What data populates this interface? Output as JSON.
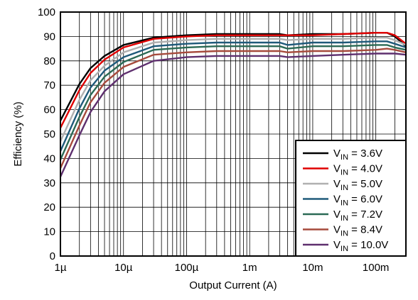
{
  "chart_data": {
    "type": "line",
    "xlabel": "Output Current (A)",
    "ylabel": "Efficiency (%)",
    "x_scale": "log",
    "xlim": [
      1e-06,
      0.3
    ],
    "ylim": [
      0,
      100
    ],
    "grid": true,
    "legend_position": "bottom-right",
    "x_ticks": [
      {
        "value": 1e-06,
        "label": "1µ"
      },
      {
        "value": 1e-05,
        "label": "10µ"
      },
      {
        "value": 0.0001,
        "label": "100µ"
      },
      {
        "value": 0.001,
        "label": "1m"
      },
      {
        "value": 0.01,
        "label": "10m"
      },
      {
        "value": 0.1,
        "label": "100m"
      }
    ],
    "y_ticks": [
      0,
      10,
      20,
      30,
      40,
      50,
      60,
      70,
      80,
      90,
      100
    ],
    "series": [
      {
        "name": "VIN = 3.6V",
        "legend_main": "V",
        "legend_sub": "IN",
        "legend_rest": " = 3.6V",
        "color": "#000000",
        "x": [
          1e-06,
          2e-06,
          3e-06,
          5e-06,
          1e-05,
          3e-05,
          0.0001,
          0.0003,
          0.001,
          0.003,
          0.004,
          0.01,
          0.03,
          0.1,
          0.15,
          0.2,
          0.3
        ],
        "y": [
          55.5,
          70.5,
          77,
          82,
          86.5,
          89.5,
          90.5,
          91,
          91,
          91,
          90.5,
          91,
          91,
          91.5,
          91.5,
          90,
          86
        ]
      },
      {
        "name": "VIN = 4.0V",
        "legend_main": "V",
        "legend_sub": "IN",
        "legend_rest": " = 4.0V",
        "color": "#e00000",
        "x": [
          1e-06,
          2e-06,
          3e-06,
          5e-06,
          1e-05,
          3e-05,
          0.0001,
          0.0003,
          0.001,
          0.003,
          0.004,
          0.01,
          0.03,
          0.1,
          0.15,
          0.2,
          0.3
        ],
        "y": [
          52.5,
          68,
          75,
          80.5,
          85.5,
          89,
          90,
          90.5,
          90.5,
          90.5,
          90.5,
          90.5,
          91,
          91.5,
          91.5,
          90.5,
          87
        ]
      },
      {
        "name": "VIN = 5.0V",
        "legend_main": "V",
        "legend_sub": "IN",
        "legend_rest": " = 5.0V",
        "color": "#b0b0b0",
        "x": [
          1e-06,
          2e-06,
          3e-06,
          5e-06,
          1e-05,
          3e-05,
          0.0001,
          0.0003,
          0.001,
          0.003,
          0.004,
          0.01,
          0.03,
          0.1,
          0.15,
          0.2,
          0.3
        ],
        "y": [
          47,
          64,
          72,
          78,
          83.5,
          87.5,
          88.5,
          89,
          89,
          89,
          88.5,
          89,
          89,
          89.5,
          89.5,
          88.5,
          86.5
        ]
      },
      {
        "name": "VIN = 6.0V",
        "legend_main": "V",
        "legend_sub": "IN",
        "legend_rest": " = 6.0V",
        "color": "#1f5a7a",
        "x": [
          1e-06,
          2e-06,
          3e-06,
          5e-06,
          1e-05,
          3e-05,
          0.0001,
          0.0003,
          0.001,
          0.003,
          0.004,
          0.01,
          0.03,
          0.1,
          0.15,
          0.2,
          0.3
        ],
        "y": [
          43,
          60.5,
          69,
          76,
          81.5,
          86,
          87,
          87.5,
          87.5,
          87.5,
          86.5,
          87.5,
          87.5,
          88,
          88,
          87,
          85.5
        ]
      },
      {
        "name": "VIN = 7.2V",
        "legend_main": "V",
        "legend_sub": "IN",
        "legend_rest": " = 7.2V",
        "color": "#2b6a55",
        "x": [
          1e-06,
          2e-06,
          3e-06,
          5e-06,
          1e-05,
          3e-05,
          0.0001,
          0.0003,
          0.001,
          0.003,
          0.004,
          0.01,
          0.03,
          0.1,
          0.15,
          0.2,
          0.3
        ],
        "y": [
          39.5,
          57,
          66,
          73.5,
          79.5,
          84.5,
          85.5,
          86,
          86,
          86,
          85,
          86,
          86,
          86.5,
          86.5,
          85.5,
          84.5
        ]
      },
      {
        "name": "VIN = 8.4V",
        "legend_main": "V",
        "legend_sub": "IN",
        "legend_rest": " = 8.4V",
        "color": "#a64a3c",
        "x": [
          1e-06,
          2e-06,
          3e-06,
          5e-06,
          1e-05,
          3e-05,
          0.0001,
          0.0003,
          0.001,
          0.003,
          0.004,
          0.01,
          0.03,
          0.1,
          0.15,
          0.2,
          0.3
        ],
        "y": [
          36,
          53.5,
          63,
          71,
          77.5,
          82.5,
          83.5,
          84,
          84,
          84,
          83.5,
          84,
          84,
          84.5,
          85,
          84.5,
          83.5
        ]
      },
      {
        "name": "VIN = 10.0V",
        "legend_main": "V",
        "legend_sub": "IN",
        "legend_rest": " = 10.0V",
        "color": "#5e2f6e",
        "x": [
          1e-06,
          2e-06,
          3e-06,
          5e-06,
          1e-05,
          3e-05,
          0.0001,
          0.0003,
          0.001,
          0.003,
          0.004,
          0.01,
          0.03,
          0.1,
          0.15,
          0.2,
          0.3
        ],
        "y": [
          32.5,
          49.5,
          59,
          67.5,
          74.5,
          80,
          81.5,
          82,
          82,
          82,
          81.5,
          82,
          82.5,
          83,
          83,
          83,
          82.5
        ]
      }
    ]
  }
}
